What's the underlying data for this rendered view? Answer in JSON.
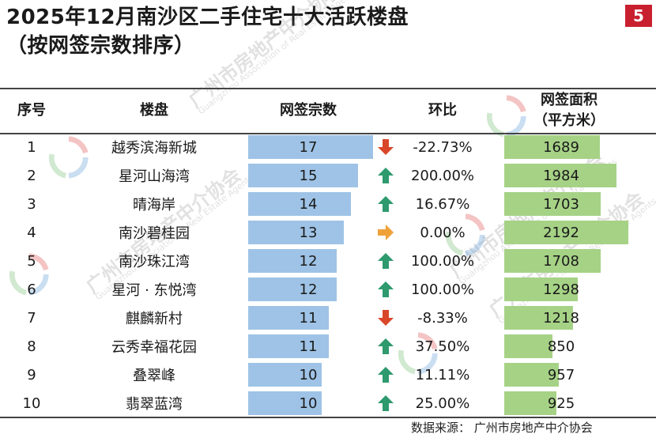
{
  "title_line1": "2025年12月南沙区二手住宅十大活跃楼盘",
  "title_line2": "（按网签宗数排序）",
  "page_number": "5",
  "headers": {
    "rank": "序号",
    "project": "楼盘",
    "deals": "网签宗数",
    "mom": "环比",
    "area_line1": "网签面积",
    "area_line2": "（平方米）"
  },
  "colors": {
    "deals_bar": "#9ec3e6",
    "area_bar": "#a6d286",
    "arrow_up": "#2e9a6e",
    "arrow_down": "#d9472a",
    "arrow_flat": "#f0a23a"
  },
  "watermark": {
    "text": "广州市房地产中介协会",
    "text_en": "Guangzhou Association of Real Estate Agents"
  },
  "source": "数据来源：  广州市房地产中介协会",
  "chart_data": {
    "type": "table",
    "title": "2025年12月南沙区二手住宅十大活跃楼盘（按网签宗数排序）",
    "columns": [
      "序号",
      "楼盘",
      "网签宗数",
      "环比",
      "网签面积（平方米）"
    ],
    "rows": [
      {
        "rank": "1",
        "name": "越秀滨海新城",
        "deals": 17,
        "mom": "-22.73%",
        "trend": "down",
        "area": 1689
      },
      {
        "rank": "2",
        "name": "星河山海湾",
        "deals": 15,
        "mom": "200.00%",
        "trend": "up",
        "area": 1984
      },
      {
        "rank": "3",
        "name": "晴海岸",
        "deals": 14,
        "mom": "16.67%",
        "trend": "up",
        "area": 1703
      },
      {
        "rank": "4",
        "name": "南沙碧桂园",
        "deals": 13,
        "mom": "0.00%",
        "trend": "flat",
        "area": 2192
      },
      {
        "rank": "5",
        "name": "南沙珠江湾",
        "deals": 12,
        "mom": "100.00%",
        "trend": "up",
        "area": 1708
      },
      {
        "rank": "6",
        "name": "星河 · 东悦湾",
        "deals": 12,
        "mom": "100.00%",
        "trend": "up",
        "area": 1298
      },
      {
        "rank": "7",
        "name": "麒麟新村",
        "deals": 11,
        "mom": "-8.33%",
        "trend": "down",
        "area": 1218
      },
      {
        "rank": "8",
        "name": "云秀幸福花园",
        "deals": 11,
        "mom": "37.50%",
        "trend": "up",
        "area": 850
      },
      {
        "rank": "9",
        "name": "叠翠峰",
        "deals": 10,
        "mom": "11.11%",
        "trend": "up",
        "area": 957
      },
      {
        "rank": "10",
        "name": "翡翠蓝湾",
        "deals": 10,
        "mom": "25.00%",
        "trend": "up",
        "area": 925
      }
    ],
    "deals_max": 17,
    "area_max": 2192
  }
}
